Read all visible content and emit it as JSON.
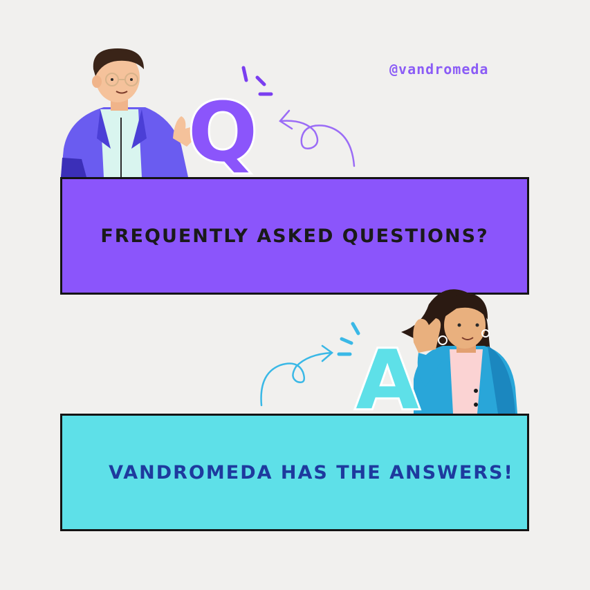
{
  "handle": "@vandromeda",
  "question_banner": {
    "text": "FREQUENTLY ASKED QUESTIONS?"
  },
  "answer_banner": {
    "text": "VANDROMEDA HAS THE ANSWERS!"
  },
  "q_letter": "Q",
  "a_letter": "A",
  "colors": {
    "background": "#f1f0ee",
    "purple": "#8b55fb",
    "cyan": "#5ee0e8",
    "navy_text": "#1e3a9e",
    "border": "#141414"
  }
}
